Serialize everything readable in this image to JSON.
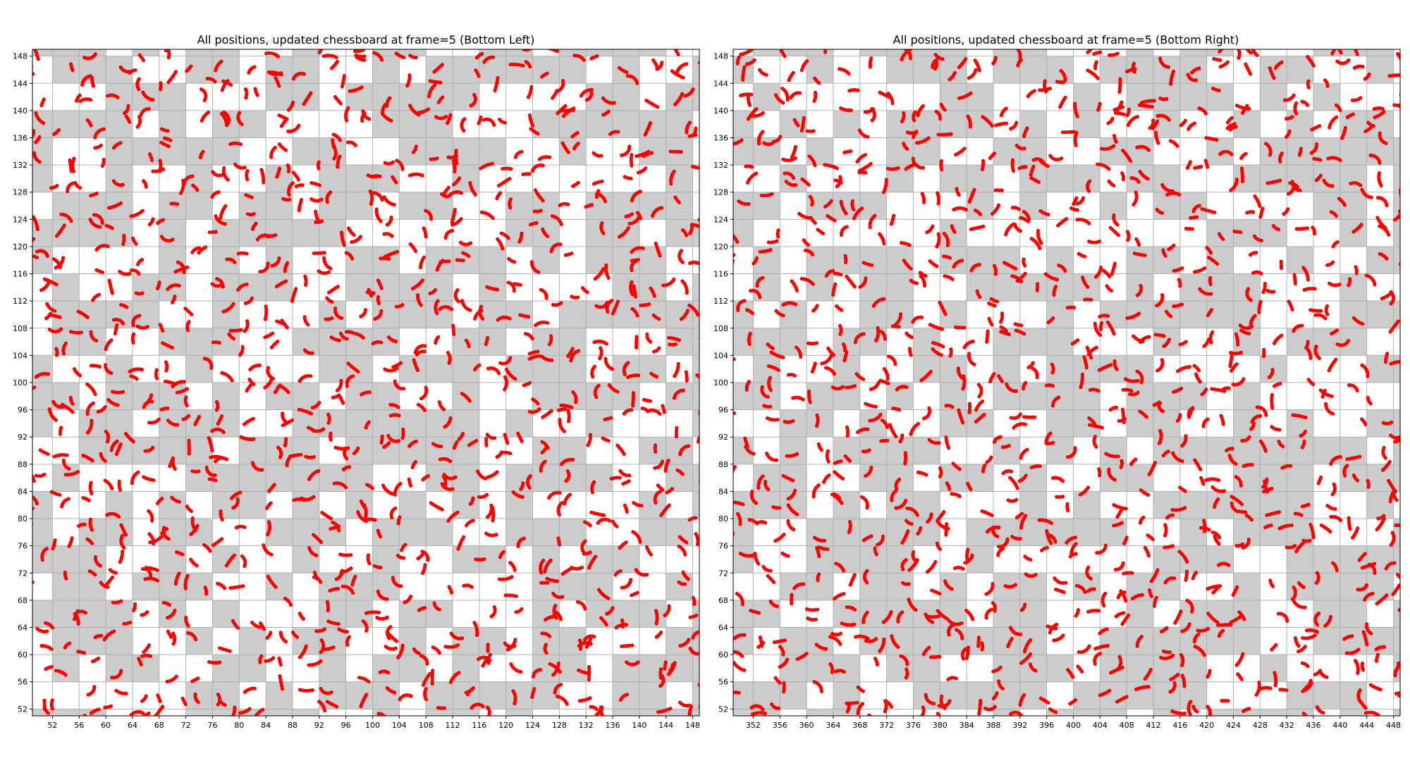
{
  "chart_data": [
    {
      "type": "scatter",
      "title": "All positions, updated chessboard at frame=5 (Bottom Left)",
      "xlim": [
        49,
        149
      ],
      "ylim": [
        51,
        149
      ],
      "xticks": [
        52,
        56,
        60,
        64,
        68,
        72,
        76,
        80,
        84,
        88,
        92,
        96,
        100,
        104,
        108,
        112,
        116,
        120,
        124,
        128,
        132,
        136,
        140,
        144,
        148
      ],
      "yticks": [
        52,
        56,
        60,
        64,
        68,
        72,
        76,
        80,
        84,
        88,
        92,
        96,
        100,
        104,
        108,
        112,
        116,
        120,
        124,
        128,
        132,
        136,
        140,
        144,
        148
      ],
      "grid": true,
      "board": {
        "cell_size": 4,
        "colors": [
          "#cccccc",
          "#ffffff"
        ]
      },
      "point_color": "#ff0000",
      "seed": 7
    },
    {
      "type": "scatter",
      "title": "All positions, updated chessboard at frame=5 (Bottom Right)",
      "xlim": [
        349,
        449
      ],
      "ylim": [
        51,
        149
      ],
      "xticks": [
        352,
        356,
        360,
        364,
        368,
        372,
        376,
        380,
        384,
        388,
        392,
        396,
        400,
        404,
        408,
        412,
        416,
        420,
        424,
        428,
        432,
        436,
        440,
        444,
        448
      ],
      "yticks": [
        52,
        56,
        60,
        64,
        68,
        72,
        76,
        80,
        84,
        88,
        92,
        96,
        100,
        104,
        108,
        112,
        116,
        120,
        124,
        128,
        132,
        136,
        140,
        144,
        148
      ],
      "grid": true,
      "board": {
        "cell_size": 4,
        "colors": [
          "#cccccc",
          "#ffffff"
        ]
      },
      "point_color": "#ff0000",
      "seed": 19
    }
  ]
}
